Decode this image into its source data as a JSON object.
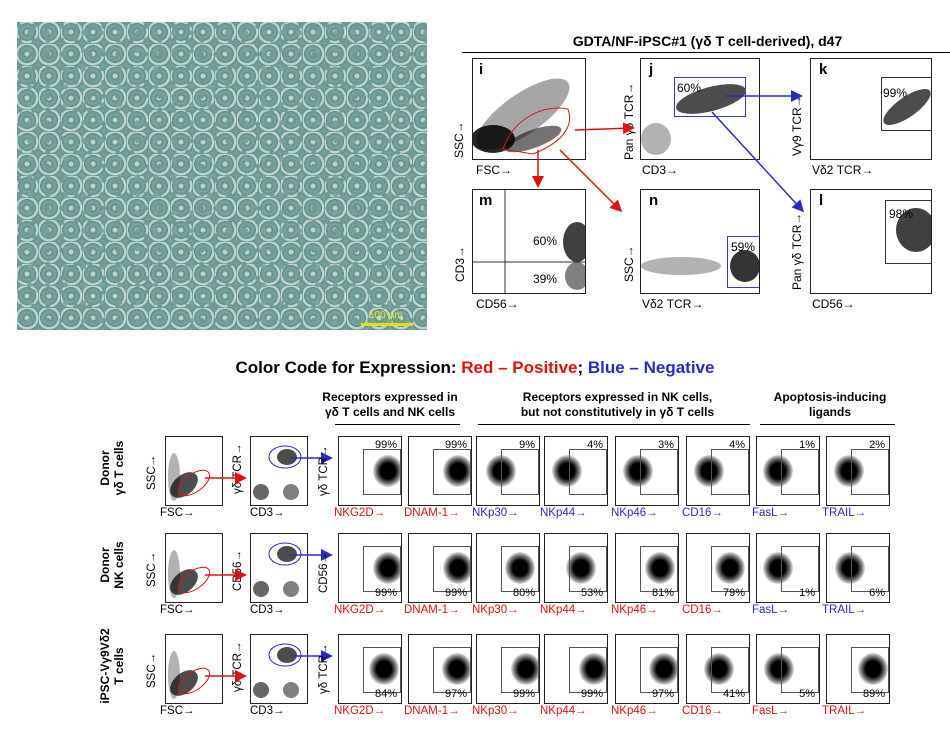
{
  "micrograph": {
    "scale_bar": "100 µm"
  },
  "top_panel": {
    "title": "GDTA/NF-iPSC#1 (γδ T cell-derived), d47",
    "plots": [
      {
        "id": "i",
        "label": "i",
        "xlabel": "FSC→",
        "ylabel": "SSC→",
        "pct": ""
      },
      {
        "id": "j",
        "label": "j",
        "xlabel": "CD3→",
        "ylabel": "Pan γδ TCR→",
        "pct": "60%"
      },
      {
        "id": "k",
        "label": "k",
        "xlabel": "Vδ2 TCR→",
        "ylabel": "Vγ9 TCR→",
        "pct": "99%"
      },
      {
        "id": "m",
        "label": "m",
        "xlabel": "CD56→",
        "ylabel": "CD3→",
        "pct": "60%",
        "pct2": "39%"
      },
      {
        "id": "n",
        "label": "n",
        "xlabel": "Vδ2 TCR→",
        "ylabel": "SSC→",
        "pct": "59%"
      },
      {
        "id": "l",
        "label": "l",
        "xlabel": "CD56→",
        "ylabel": "Pan γδ TCR→",
        "pct": "98%"
      }
    ]
  },
  "color_code": {
    "prefix": "Color Code for Expression: ",
    "positive": "Red – Positive",
    "sep": "; ",
    "negative": "Blue – Negative"
  },
  "groups": [
    {
      "text1": "Receptors expressed in",
      "text2": "γδ T cells and NK cells"
    },
    {
      "text1": "Receptors expressed in NK cells,",
      "text2": "but not constitutively in γδ T cells"
    },
    {
      "text1": "Apoptosis-inducing",
      "text2": "ligands"
    }
  ],
  "markers": [
    "NKG2D→",
    "DNAM-1→",
    "NKp30→",
    "NKp44→",
    "NKp46→",
    "CD16→",
    "FasL→",
    "TRAIL→"
  ],
  "rows": [
    {
      "label1": "Donor",
      "label2": "γδ T cells",
      "gate_x": "FSC→",
      "gate_y": "SSC→",
      "gate2_x": "CD3→",
      "gate2_y": "γδ TCR→",
      "gate3_y": "γδ TCR→",
      "pcts": [
        "99%",
        "99%",
        "9%",
        "4%",
        "3%",
        "4%",
        "1%",
        "2%"
      ],
      "colors": [
        "red",
        "red",
        "blue",
        "blue",
        "blue",
        "blue",
        "blue",
        "blue"
      ]
    },
    {
      "label1": "Donor",
      "label2": "NK cells",
      "gate_x": "FSC→",
      "gate_y": "SSC→",
      "gate2_x": "CD3→",
      "gate2_y": "CD56→",
      "gate3_y": "CD56→",
      "pcts": [
        "99%",
        "99%",
        "80%",
        "53%",
        "81%",
        "79%",
        "1%",
        "6%"
      ],
      "colors": [
        "red",
        "red",
        "red",
        "red",
        "red",
        "red",
        "blue",
        "blue"
      ]
    },
    {
      "label1": "iPSC-Vγ9Vδ2",
      "label2": "T cells",
      "gate_x": "FSC→",
      "gate_y": "SSC→",
      "gate2_x": "CD3→",
      "gate2_y": "γδ TCR→",
      "gate3_y": "γδ TCR→",
      "pcts": [
        "84%",
        "97%",
        "99%",
        "99%",
        "97%",
        "41%",
        "5%",
        "89%"
      ],
      "colors": [
        "red",
        "red",
        "red",
        "red",
        "red",
        "red",
        "red",
        "red"
      ]
    }
  ]
}
